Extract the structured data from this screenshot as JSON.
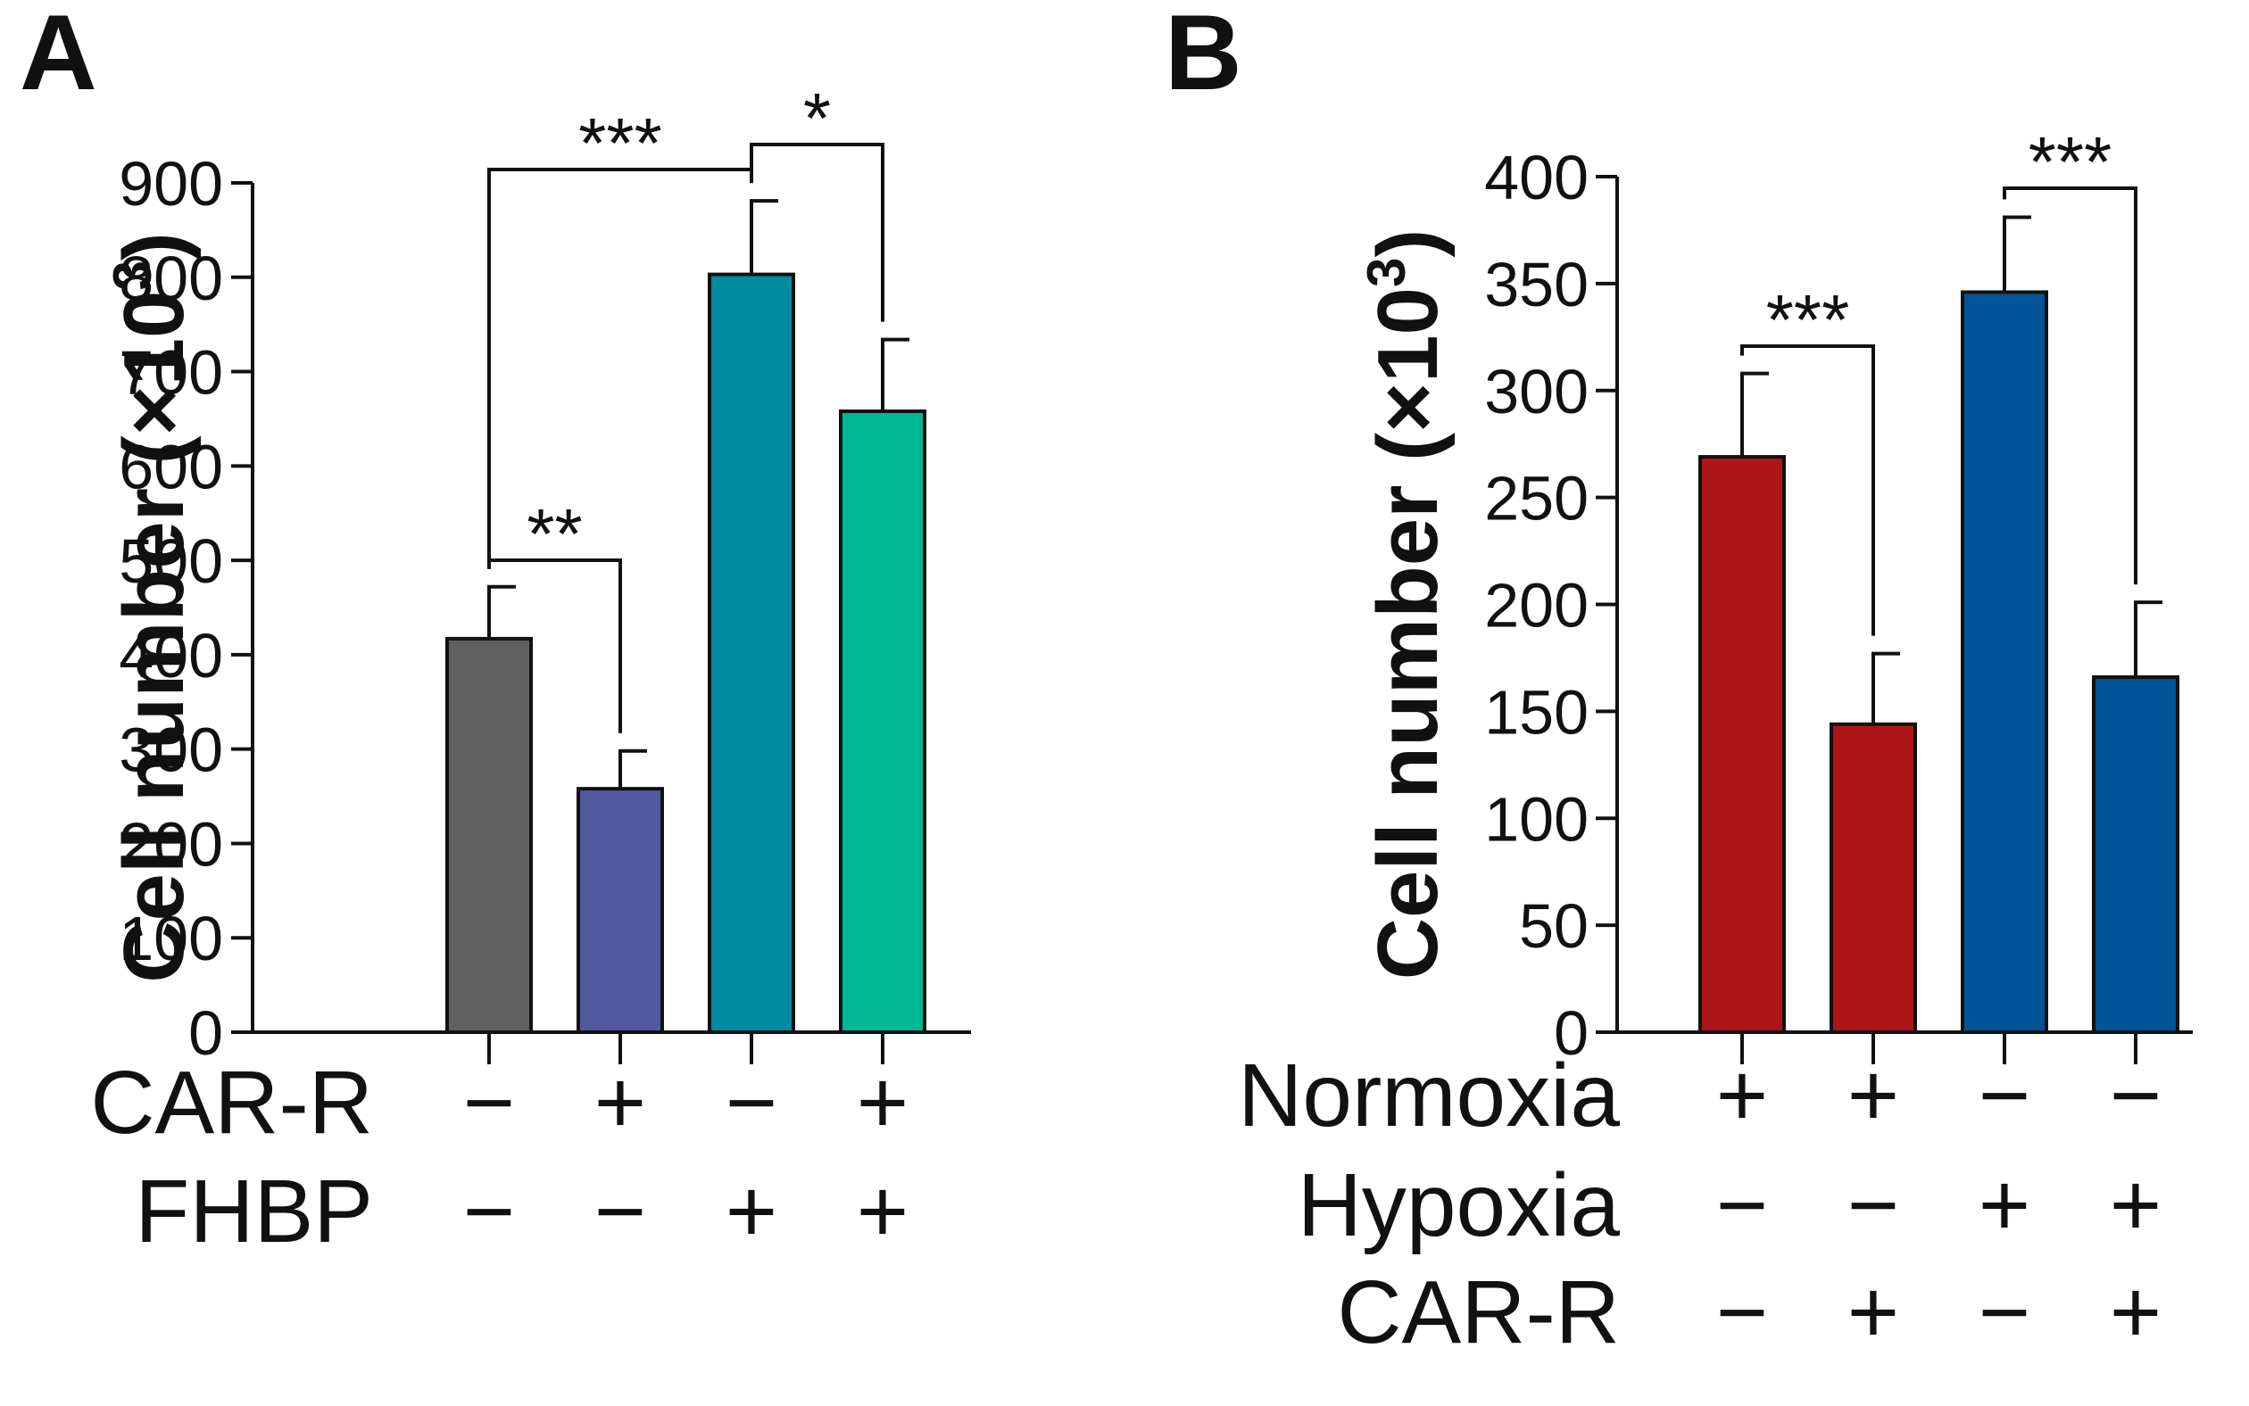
{
  "chart_data": [
    {
      "type": "bar",
      "panel_label": "A",
      "ylabel": "Cell number (×10",
      "ylabel_sup": "3",
      "ylabel_close": ")",
      "ylim": [
        0,
        900
      ],
      "yticks": [
        0,
        100,
        200,
        300,
        400,
        500,
        600,
        700,
        800,
        900
      ],
      "values": [
        417,
        258,
        803,
        658
      ],
      "errors": [
        55,
        40,
        78,
        76
      ],
      "colors": [
        "#606060",
        "#4f5b9d",
        "#008ca0",
        "#00b896"
      ],
      "conditions": [
        {
          "label": "CAR-R",
          "symbols": [
            "−",
            "+",
            "−",
            "+"
          ]
        },
        {
          "label": "FHBP",
          "symbols": [
            "−",
            "−",
            "+",
            "+"
          ]
        }
      ],
      "significance": [
        {
          "from": 0,
          "to": 2,
          "label": "***"
        },
        {
          "from": 2,
          "to": 3,
          "label": "*"
        },
        {
          "from": 0,
          "to": 1,
          "label": "**"
        }
      ]
    },
    {
      "type": "bar",
      "panel_label": "B",
      "ylabel": "Cell number (×10",
      "ylabel_sup": "3",
      "ylabel_close": ")",
      "ylim": [
        0,
        400
      ],
      "yticks": [
        0,
        50,
        100,
        150,
        200,
        250,
        300,
        350,
        400
      ],
      "values": [
        269,
        144,
        346,
        166
      ],
      "errors": [
        39,
        33,
        35,
        35
      ],
      "colors": [
        "#ad1518",
        "#ad1518",
        "#005497",
        "#005497"
      ],
      "conditions": [
        {
          "label": "Normoxia",
          "symbols": [
            "+",
            "+",
            "−",
            "−"
          ]
        },
        {
          "label": "Hypoxia",
          "symbols": [
            "−",
            "−",
            "+",
            "+"
          ]
        },
        {
          "label": "CAR-R",
          "symbols": [
            "−",
            "+",
            "−",
            "+"
          ]
        }
      ],
      "significance": [
        {
          "from": 0,
          "to": 1,
          "label": "***"
        },
        {
          "from": 2,
          "to": 3,
          "label": "***"
        }
      ]
    }
  ]
}
